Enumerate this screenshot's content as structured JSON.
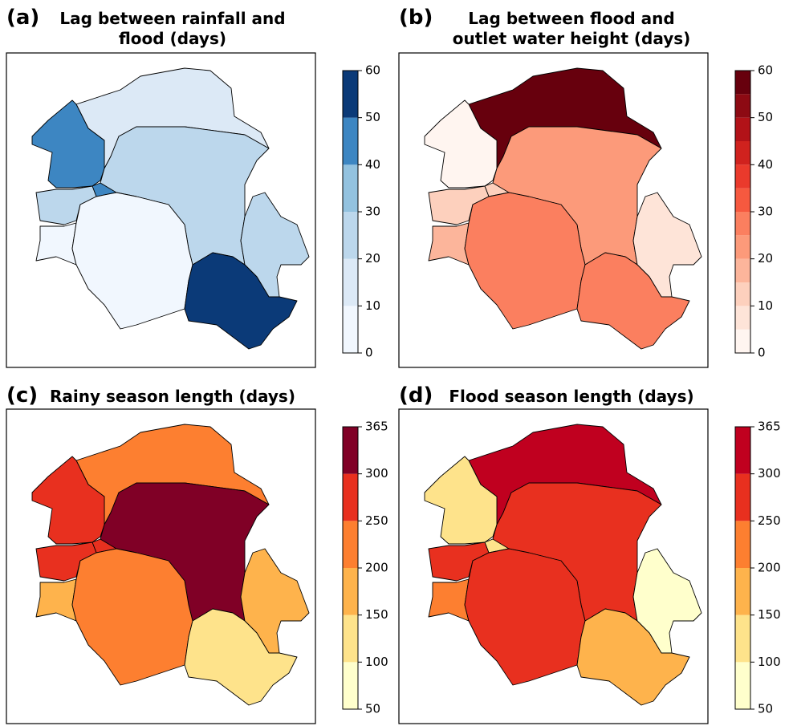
{
  "panels": [
    {
      "label": "(a)",
      "title_lines": [
        "Lag between rainfall and",
        "flood (days)"
      ],
      "colorbar": {
        "boundaries": [
          0,
          10,
          20,
          30,
          40,
          50,
          60
        ],
        "ticks": [
          0,
          10,
          20,
          30,
          40,
          50,
          60
        ],
        "colors": [
          "#f1f7fe",
          "#dce9f6",
          "#bcd7ec",
          "#93c2df",
          "#3d86c2",
          "#0b3a78"
        ]
      },
      "regions": [
        15,
        45,
        25,
        45,
        25,
        5,
        5,
        25,
        55
      ]
    },
    {
      "label": "(b)",
      "title_lines": [
        "Lag between flood and",
        "outlet water height (days)"
      ],
      "colorbar": {
        "boundaries": [
          0,
          5,
          10,
          15,
          20,
          25,
          30,
          35,
          40,
          45,
          50,
          55,
          60
        ],
        "ticks": [
          0,
          10,
          20,
          30,
          40,
          50,
          60
        ],
        "colors": [
          "#fff5f0",
          "#fee4d8",
          "#fdd0bd",
          "#fcb59b",
          "#fc9a7a",
          "#fb7f5f",
          "#f6593f",
          "#ea3a2c",
          "#d0221e",
          "#b21218",
          "#8d0a13",
          "#67000d"
        ]
      },
      "regions": [
        57,
        2,
        22,
        12,
        12,
        17,
        27,
        7,
        27
      ]
    },
    {
      "label": "(c)",
      "title_lines": [
        "Rainy season length (days)"
      ],
      "colorbar": {
        "boundaries": [
          50,
          100,
          150,
          200,
          250,
          300,
          365
        ],
        "ticks": [
          50,
          100,
          150,
          200,
          250,
          300,
          365
        ],
        "colors": [
          "#ffffcc",
          "#fee38b",
          "#feb34c",
          "#fd7f30",
          "#e8301f",
          "#800026"
        ]
      },
      "regions": [
        225,
        275,
        330,
        275,
        265,
        175,
        225,
        175,
        125
      ]
    },
    {
      "label": "(d)",
      "title_lines": [
        "Flood season length (days)"
      ],
      "colorbar": {
        "boundaries": [
          50,
          100,
          150,
          200,
          250,
          300,
          365
        ],
        "ticks": [
          50,
          100,
          150,
          200,
          250,
          300,
          365
        ],
        "colors": [
          "#ffffcc",
          "#fee38b",
          "#feb34c",
          "#fd7f30",
          "#e8301f",
          "#c0001f"
        ]
      },
      "regions": [
        330,
        125,
        275,
        125,
        275,
        225,
        275,
        75,
        175
      ]
    }
  ]
}
